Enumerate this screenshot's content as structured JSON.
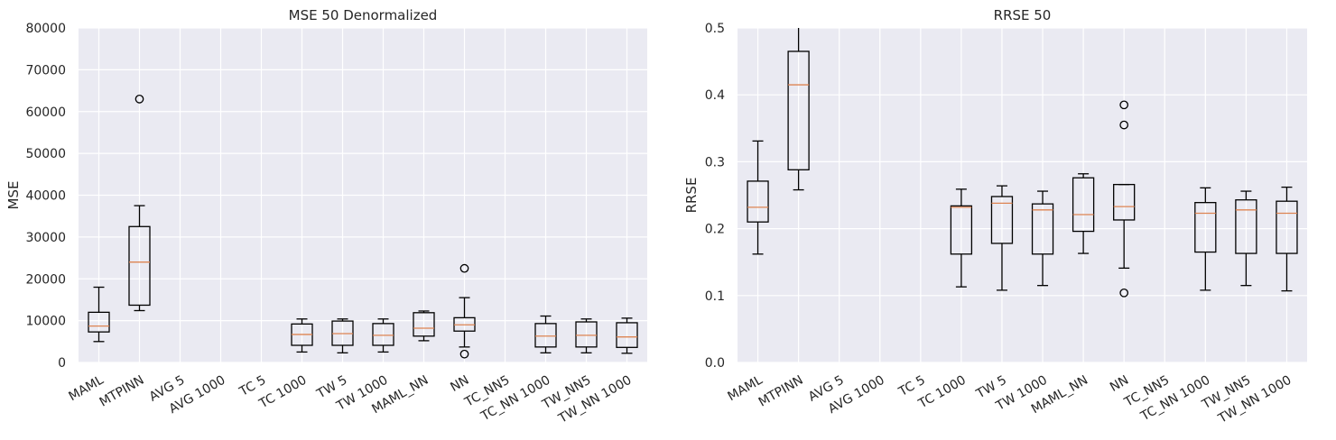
{
  "chart_data": [
    {
      "type": "box",
      "title": "MSE 50 Denormalized",
      "xlabel": "",
      "ylabel": "MSE",
      "ylim": [
        0,
        80000
      ],
      "yticks": [
        0,
        10000,
        20000,
        30000,
        40000,
        50000,
        60000,
        70000,
        80000
      ],
      "yticklabels": [
        "0",
        "10000",
        "20000",
        "30000",
        "40000",
        "50000",
        "60000",
        "70000",
        "80000"
      ],
      "categories": [
        "MAML",
        "MTPINN",
        "AVG 5",
        "AVG 1000",
        "TC 5",
        "TC 1000",
        "TW 5",
        "TW 1000",
        "MAML_NN",
        "NN",
        "TC_NN5",
        "TC_NN 1000",
        "TW_NN5",
        "TW_NN 1000"
      ],
      "boxes": [
        {
          "whislo": 5000,
          "q1": 7300,
          "med": 8700,
          "q3": 12000,
          "whishi": 18000,
          "fliers": []
        },
        {
          "whislo": 12400,
          "q1": 13700,
          "med": 24000,
          "q3": 32500,
          "whishi": 37500,
          "fliers": [
            63000
          ]
        },
        null,
        null,
        null,
        {
          "whislo": 2500,
          "q1": 4100,
          "med": 6700,
          "q3": 9200,
          "whishi": 10400,
          "fliers": []
        },
        {
          "whislo": 2300,
          "q1": 4100,
          "med": 6900,
          "q3": 9900,
          "whishi": 10400,
          "fliers": []
        },
        {
          "whislo": 2500,
          "q1": 4100,
          "med": 6500,
          "q3": 9300,
          "whishi": 10400,
          "fliers": []
        },
        {
          "whislo": 5200,
          "q1": 6300,
          "med": 8200,
          "q3": 11900,
          "whishi": 12300,
          "fliers": []
        },
        {
          "whislo": 3700,
          "q1": 7500,
          "med": 9000,
          "q3": 10700,
          "whishi": 15500,
          "fliers": [
            22500,
            2000
          ]
        },
        null,
        {
          "whislo": 2300,
          "q1": 3700,
          "med": 6300,
          "q3": 9300,
          "whishi": 11100,
          "fliers": []
        },
        {
          "whislo": 2300,
          "q1": 3700,
          "med": 6500,
          "q3": 9700,
          "whishi": 10400,
          "fliers": []
        },
        {
          "whislo": 2200,
          "q1": 3600,
          "med": 6100,
          "q3": 9500,
          "whishi": 10600,
          "fliers": []
        }
      ]
    },
    {
      "type": "box",
      "title": "RRSE 50",
      "xlabel": "",
      "ylabel": "RRSE",
      "ylim": [
        0,
        0.5
      ],
      "yticks": [
        0,
        0.1,
        0.2,
        0.3,
        0.4,
        0.5
      ],
      "yticklabels": [
        "0.0",
        "0.1",
        "0.2",
        "0.3",
        "0.4",
        "0.5"
      ],
      "categories": [
        "MAML",
        "MTPINN",
        "AVG 5",
        "AVG 1000",
        "TC 5",
        "TC 1000",
        "TW 5",
        "TW 1000",
        "MAML_NN",
        "NN",
        "TC_NN5",
        "TC_NN 1000",
        "TW_NN5",
        "TW_NN 1000"
      ],
      "boxes": [
        {
          "whislo": 0.162,
          "q1": 0.21,
          "med": 0.232,
          "q3": 0.271,
          "whishi": 0.331,
          "fliers": []
        },
        {
          "whislo": 0.258,
          "q1": 0.288,
          "med": 0.415,
          "q3": 0.465,
          "whishi": 0.51,
          "fliers": []
        },
        null,
        null,
        null,
        {
          "whislo": 0.113,
          "q1": 0.162,
          "med": 0.232,
          "q3": 0.234,
          "whishi": 0.259,
          "fliers": []
        },
        {
          "whislo": 0.108,
          "q1": 0.178,
          "med": 0.238,
          "q3": 0.248,
          "whishi": 0.264,
          "fliers": []
        },
        {
          "whislo": 0.115,
          "q1": 0.162,
          "med": 0.228,
          "q3": 0.237,
          "whishi": 0.256,
          "fliers": []
        },
        {
          "whislo": 0.163,
          "q1": 0.196,
          "med": 0.221,
          "q3": 0.276,
          "whishi": 0.282,
          "fliers": []
        },
        {
          "whislo": 0.141,
          "q1": 0.213,
          "med": 0.233,
          "q3": 0.266,
          "whishi": 0.266,
          "fliers": [
            0.385,
            0.355,
            0.104
          ]
        },
        null,
        {
          "whislo": 0.108,
          "q1": 0.165,
          "med": 0.223,
          "q3": 0.239,
          "whishi": 0.261,
          "fliers": []
        },
        {
          "whislo": 0.115,
          "q1": 0.163,
          "med": 0.228,
          "q3": 0.243,
          "whishi": 0.256,
          "fliers": []
        },
        {
          "whislo": 0.107,
          "q1": 0.163,
          "med": 0.223,
          "q3": 0.241,
          "whishi": 0.262,
          "fliers": []
        }
      ]
    }
  ]
}
